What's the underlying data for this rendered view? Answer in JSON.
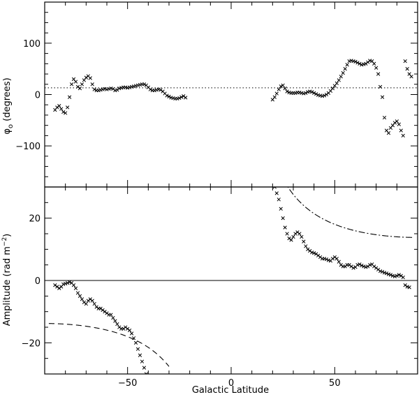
{
  "chart_data": [
    {
      "type": "scatter",
      "panel": "top",
      "xlabel": "",
      "ylabel": "φ₀ (degrees)",
      "ylabel_main": "φ",
      "ylabel_sub": "o",
      "ylabel_rest": " (degrees)",
      "xlim": [
        -90,
        90
      ],
      "ylim": [
        -180,
        180
      ],
      "yticks": [
        -100,
        0,
        100
      ],
      "ytick_labels": [
        "−100",
        "0",
        "100"
      ],
      "reference_line": {
        "y": 13,
        "style": "dotted"
      },
      "series": [
        {
          "marker": "x",
          "points": [
            [
              -85,
              -30
            ],
            [
              -84,
              -25
            ],
            [
              -83,
              -22
            ],
            [
              -82,
              -28
            ],
            [
              -81,
              -34
            ],
            [
              -80,
              -36
            ],
            [
              -79,
              -25
            ],
            [
              -78,
              -5
            ],
            [
              -77,
              20
            ],
            [
              -76,
              30
            ],
            [
              -75,
              25
            ],
            [
              -74,
              15
            ],
            [
              -73,
              12
            ],
            [
              -72,
              20
            ],
            [
              -71,
              28
            ],
            [
              -70,
              33
            ],
            [
              -69,
              36
            ],
            [
              -68,
              32
            ],
            [
              -67,
              20
            ],
            [
              -66,
              10
            ],
            [
              -65,
              8
            ],
            [
              -64,
              8
            ],
            [
              -63,
              9
            ],
            [
              -62,
              10
            ],
            [
              -61,
              11
            ],
            [
              -60,
              10
            ],
            [
              -59,
              11
            ],
            [
              -58,
              12
            ],
            [
              -57,
              11
            ],
            [
              -56,
              8
            ],
            [
              -55,
              9
            ],
            [
              -54,
              12
            ],
            [
              -53,
              13
            ],
            [
              -52,
              14
            ],
            [
              -51,
              14
            ],
            [
              -50,
              13
            ],
            [
              -49,
              14
            ],
            [
              -48,
              15
            ],
            [
              -47,
              16
            ],
            [
              -46,
              17
            ],
            [
              -45,
              18
            ],
            [
              -44,
              19
            ],
            [
              -43,
              20
            ],
            [
              -42,
              20
            ],
            [
              -41,
              18
            ],
            [
              -40,
              14
            ],
            [
              -39,
              10
            ],
            [
              -38,
              8
            ],
            [
              -37,
              8
            ],
            [
              -36,
              9
            ],
            [
              -35,
              10
            ],
            [
              -34,
              9
            ],
            [
              -33,
              6
            ],
            [
              -32,
              2
            ],
            [
              -31,
              -2
            ],
            [
              -30,
              -4
            ],
            [
              -29,
              -6
            ],
            [
              -28,
              -7
            ],
            [
              -27,
              -8
            ],
            [
              -26,
              -8
            ],
            [
              -25,
              -7
            ],
            [
              -24,
              -5
            ],
            [
              -23,
              -3
            ],
            [
              -22,
              -6
            ],
            [
              20,
              -10
            ],
            [
              21,
              -5
            ],
            [
              22,
              2
            ],
            [
              23,
              10
            ],
            [
              24,
              16
            ],
            [
              25,
              18
            ],
            [
              26,
              12
            ],
            [
              27,
              6
            ],
            [
              28,
              4
            ],
            [
              29,
              3
            ],
            [
              30,
              3
            ],
            [
              31,
              3
            ],
            [
              32,
              4
            ],
            [
              33,
              4
            ],
            [
              34,
              3
            ],
            [
              35,
              2
            ],
            [
              36,
              3
            ],
            [
              37,
              5
            ],
            [
              38,
              6
            ],
            [
              39,
              5
            ],
            [
              40,
              3
            ],
            [
              41,
              1
            ],
            [
              42,
              -1
            ],
            [
              43,
              -2
            ],
            [
              44,
              -3
            ],
            [
              45,
              -2
            ],
            [
              46,
              0
            ],
            [
              47,
              3
            ],
            [
              48,
              7
            ],
            [
              49,
              12
            ],
            [
              50,
              17
            ],
            [
              51,
              22
            ],
            [
              52,
              28
            ],
            [
              53,
              35
            ],
            [
              54,
              42
            ],
            [
              55,
              50
            ],
            [
              56,
              58
            ],
            [
              57,
              65
            ],
            [
              58,
              66
            ],
            [
              59,
              65
            ],
            [
              60,
              64
            ],
            [
              61,
              62
            ],
            [
              62,
              60
            ],
            [
              63,
              58
            ],
            [
              64,
              59
            ],
            [
              65,
              60
            ],
            [
              66,
              63
            ],
            [
              67,
              66
            ],
            [
              68,
              65
            ],
            [
              69,
              60
            ],
            [
              70,
              52
            ],
            [
              71,
              40
            ],
            [
              72,
              15
            ],
            [
              73,
              -5
            ],
            [
              74,
              -45
            ],
            [
              75,
              -70
            ],
            [
              76,
              -75
            ],
            [
              77,
              -65
            ],
            [
              78,
              -60
            ],
            [
              79,
              -55
            ],
            [
              80,
              -52
            ],
            [
              81,
              -58
            ],
            [
              82,
              -70
            ],
            [
              83,
              -80
            ],
            [
              84,
              65
            ],
            [
              85,
              50
            ],
            [
              86,
              40
            ],
            [
              87,
              35
            ]
          ]
        }
      ]
    },
    {
      "type": "scatter",
      "panel": "bottom",
      "xlabel": "Galactic Latitude",
      "ylabel": "Amplitude (rad m⁻²)",
      "ylabel_main": "Amplitude (rad m",
      "ylabel_sup": "−2",
      "ylabel_rest": ")",
      "xlim": [
        -90,
        90
      ],
      "ylim": [
        -30,
        30
      ],
      "xticks": [
        -50,
        0,
        50
      ],
      "xtick_labels": [
        "−50",
        "0",
        "50"
      ],
      "yticks": [
        -20,
        0,
        20
      ],
      "ytick_labels": [
        "−20",
        "0",
        "20"
      ],
      "reference_line": {
        "y": 0,
        "style": "solid"
      },
      "series": [
        {
          "marker": "x",
          "points": [
            [
              -85,
              -1.5
            ],
            [
              -84,
              -2
            ],
            [
              -83,
              -2.5
            ],
            [
              -82,
              -2
            ],
            [
              -81,
              -1.2
            ],
            [
              -80,
              -1
            ],
            [
              -79,
              -0.8
            ],
            [
              -78,
              -0.5
            ],
            [
              -77,
              -0.8
            ],
            [
              -76,
              -1.5
            ],
            [
              -75,
              -2.5
            ],
            [
              -74,
              -4
            ],
            [
              -73,
              -5
            ],
            [
              -72,
              -6
            ],
            [
              -71,
              -7
            ],
            [
              -70,
              -7.5
            ],
            [
              -69,
              -6.5
            ],
            [
              -68,
              -6
            ],
            [
              -67,
              -6.5
            ],
            [
              -66,
              -7.5
            ],
            [
              -65,
              -8.5
            ],
            [
              -64,
              -9
            ],
            [
              -63,
              -9
            ],
            [
              -62,
              -9.5
            ],
            [
              -61,
              -10
            ],
            [
              -60,
              -10.5
            ],
            [
              -59,
              -11
            ],
            [
              -58,
              -11
            ],
            [
              -57,
              -12
            ],
            [
              -56,
              -13
            ],
            [
              -55,
              -14
            ],
            [
              -54,
              -15
            ],
            [
              -53,
              -15.5
            ],
            [
              -52,
              -15.5
            ],
            [
              -51,
              -15
            ],
            [
              -50,
              -15.5
            ],
            [
              -49,
              -16
            ],
            [
              -48,
              -17
            ],
            [
              -47,
              -18.5
            ],
            [
              -46,
              -20
            ],
            [
              -45,
              -22
            ],
            [
              -44,
              -24
            ],
            [
              -43,
              -26
            ],
            [
              -42,
              -28
            ],
            [
              -41,
              -30
            ],
            [
              21,
              30
            ],
            [
              22,
              28
            ],
            [
              23,
              26
            ],
            [
              24,
              23
            ],
            [
              25,
              20
            ],
            [
              26,
              17
            ],
            [
              27,
              15
            ],
            [
              28,
              13.5
            ],
            [
              29,
              13
            ],
            [
              30,
              14
            ],
            [
              31,
              15
            ],
            [
              32,
              15.5
            ],
            [
              33,
              15
            ],
            [
              34,
              14
            ],
            [
              35,
              12.5
            ],
            [
              36,
              11
            ],
            [
              37,
              10
            ],
            [
              38,
              9.5
            ],
            [
              39,
              9
            ],
            [
              40,
              8.8
            ],
            [
              41,
              8.5
            ],
            [
              42,
              8
            ],
            [
              43,
              7.5
            ],
            [
              44,
              7
            ],
            [
              45,
              7
            ],
            [
              46,
              6.8
            ],
            [
              47,
              6.5
            ],
            [
              48,
              6.3
            ],
            [
              49,
              7
            ],
            [
              50,
              7.5
            ],
            [
              51,
              7
            ],
            [
              52,
              6
            ],
            [
              53,
              5
            ],
            [
              54,
              4.5
            ],
            [
              55,
              4.5
            ],
            [
              56,
              5
            ],
            [
              57,
              5
            ],
            [
              58,
              4.5
            ],
            [
              59,
              4
            ],
            [
              60,
              4.3
            ],
            [
              61,
              5
            ],
            [
              62,
              5.2
            ],
            [
              63,
              4.8
            ],
            [
              64,
              4.5
            ],
            [
              65,
              4.3
            ],
            [
              66,
              4.5
            ],
            [
              67,
              5
            ],
            [
              68,
              5.2
            ],
            [
              69,
              4.5
            ],
            [
              70,
              4
            ],
            [
              71,
              3.5
            ],
            [
              72,
              3
            ],
            [
              73,
              2.8
            ],
            [
              74,
              2.5
            ],
            [
              75,
              2.3
            ],
            [
              76,
              2
            ],
            [
              77,
              1.8
            ],
            [
              78,
              1.5
            ],
            [
              79,
              1.3
            ],
            [
              80,
              1.5
            ],
            [
              81,
              1.8
            ],
            [
              82,
              1.5
            ],
            [
              83,
              1
            ],
            [
              84,
              -1.5
            ],
            [
              85,
              -2
            ],
            [
              86,
              -2.2
            ]
          ]
        },
        {
          "name": "",
          "style": "dashed",
          "function": "a/sin(b)",
          "param": 13.8,
          "x_range": [
            -88,
            -30
          ]
        },
        {
          "name": "",
          "style": "dash-dot",
          "function": "a/sin(b)",
          "param": 13.8,
          "x_range": [
            20.5,
            88
          ]
        }
      ]
    }
  ]
}
